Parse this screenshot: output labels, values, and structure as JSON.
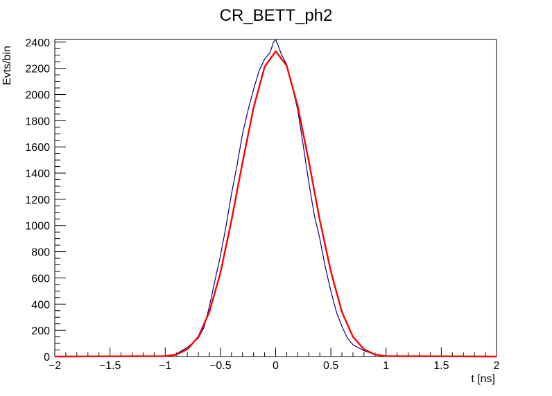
{
  "chart_data": {
    "type": "line",
    "title": "CR_BETT_ph2",
    "xlabel": "t [ns]",
    "ylabel": "Evts/bin",
    "xlim": [
      -2,
      2
    ],
    "ylim": [
      0,
      2420
    ],
    "x_ticks": [
      -2,
      -1.5,
      -1,
      -0.5,
      0,
      0.5,
      1,
      1.5,
      2
    ],
    "x_tick_labels": [
      "−2",
      "−1.5",
      "−1",
      "−0.5",
      "0",
      "0.5",
      "1",
      "1.5",
      "2"
    ],
    "y_ticks": [
      0,
      200,
      400,
      600,
      800,
      1000,
      1200,
      1400,
      1600,
      1800,
      2000,
      2200,
      2400
    ],
    "y_tick_labels": [
      "0",
      "200",
      "400",
      "600",
      "800",
      "1000",
      "1200",
      "1400",
      "1600",
      "1800",
      "2000",
      "2200",
      "2400"
    ],
    "grid": false,
    "legend": "none",
    "series": [
      {
        "kind": "histogram",
        "color": "#000080",
        "x": [
          -2.0,
          -1.0,
          -0.9,
          -0.8,
          -0.7,
          -0.65,
          -0.6,
          -0.55,
          -0.5,
          -0.45,
          -0.4,
          -0.35,
          -0.3,
          -0.25,
          -0.2,
          -0.15,
          -0.1,
          -0.05,
          -0.02,
          0.0,
          0.02,
          0.05,
          0.1,
          0.15,
          0.2,
          0.25,
          0.3,
          0.35,
          0.4,
          0.45,
          0.5,
          0.55,
          0.6,
          0.65,
          0.7,
          0.8,
          0.9,
          1.0,
          2.0
        ],
        "y": [
          0,
          2,
          20,
          70,
          140,
          220,
          380,
          580,
          770,
          990,
          1240,
          1460,
          1700,
          1880,
          2040,
          2180,
          2270,
          2320,
          2400,
          2420,
          2380,
          2310,
          2230,
          2060,
          1880,
          1610,
          1330,
          1080,
          900,
          680,
          500,
          340,
          230,
          140,
          90,
          45,
          15,
          3,
          0
        ]
      },
      {
        "kind": "fit",
        "color": "#ff0000",
        "x": [
          -2.0,
          -1.0,
          -0.9,
          -0.8,
          -0.7,
          -0.6,
          -0.5,
          -0.4,
          -0.3,
          -0.2,
          -0.1,
          0.0,
          0.1,
          0.2,
          0.3,
          0.4,
          0.5,
          0.6,
          0.7,
          0.8,
          0.9,
          1.0,
          2.0
        ],
        "y": [
          0,
          3,
          15,
          55,
          150,
          340,
          640,
          1040,
          1480,
          1900,
          2210,
          2330,
          2220,
          1910,
          1490,
          1040,
          650,
          340,
          150,
          55,
          15,
          3,
          0
        ]
      }
    ]
  }
}
